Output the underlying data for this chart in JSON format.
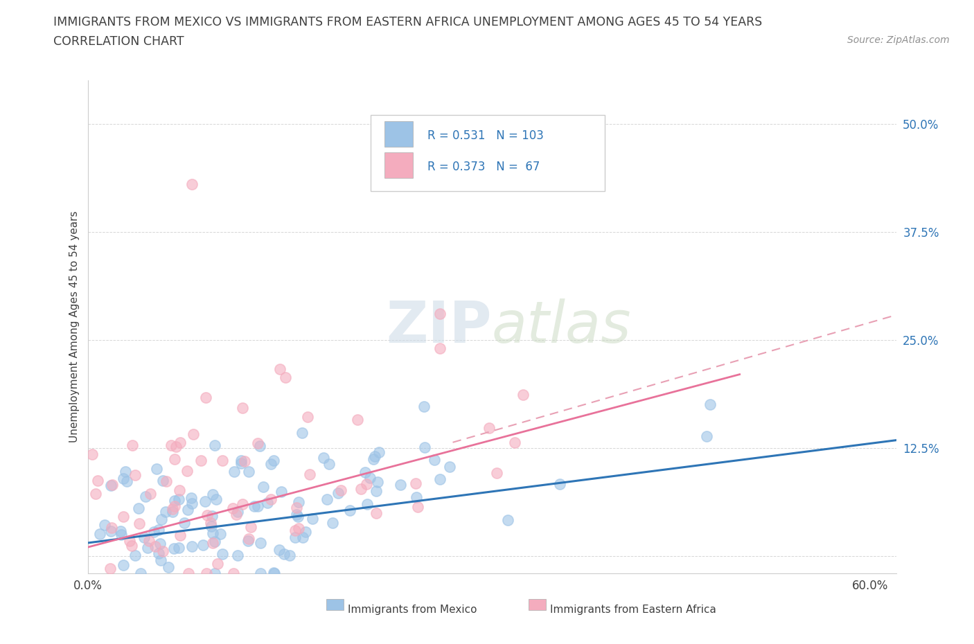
{
  "title_line1": "IMMIGRANTS FROM MEXICO VS IMMIGRANTS FROM EASTERN AFRICA UNEMPLOYMENT AMONG AGES 45 TO 54 YEARS",
  "title_line2": "CORRELATION CHART",
  "source": "Source: ZipAtlas.com",
  "ylabel": "Unemployment Among Ages 45 to 54 years",
  "xlim": [
    0.0,
    0.62
  ],
  "ylim": [
    -0.02,
    0.55
  ],
  "xtick_positions": [
    0.0,
    0.1,
    0.2,
    0.3,
    0.4,
    0.5,
    0.6
  ],
  "xticklabels": [
    "0.0%",
    "",
    "",
    "",
    "",
    "",
    "60.0%"
  ],
  "ytick_positions": [
    0.0,
    0.125,
    0.25,
    0.375,
    0.5
  ],
  "ytick_labels": [
    "",
    "12.5%",
    "25.0%",
    "37.5%",
    "50.0%"
  ],
  "color_mexico": "#9DC3E6",
  "color_africa": "#F4ACBE",
  "trendline_mexico_color": "#2E75B6",
  "trendline_africa_color": "#E8729A",
  "trendline_africa_dashed_color": "#E8A0B4",
  "R_mexico": 0.531,
  "N_mexico": 103,
  "R_africa": 0.373,
  "N_africa": 67,
  "background_color": "#FFFFFF",
  "grid_color": "#CCCCCC",
  "title_color": "#404040",
  "legend_r1": "R = 0.531",
  "legend_n1": "N = 103",
  "legend_r2": "R = 0.373",
  "legend_n2": "N =  67"
}
